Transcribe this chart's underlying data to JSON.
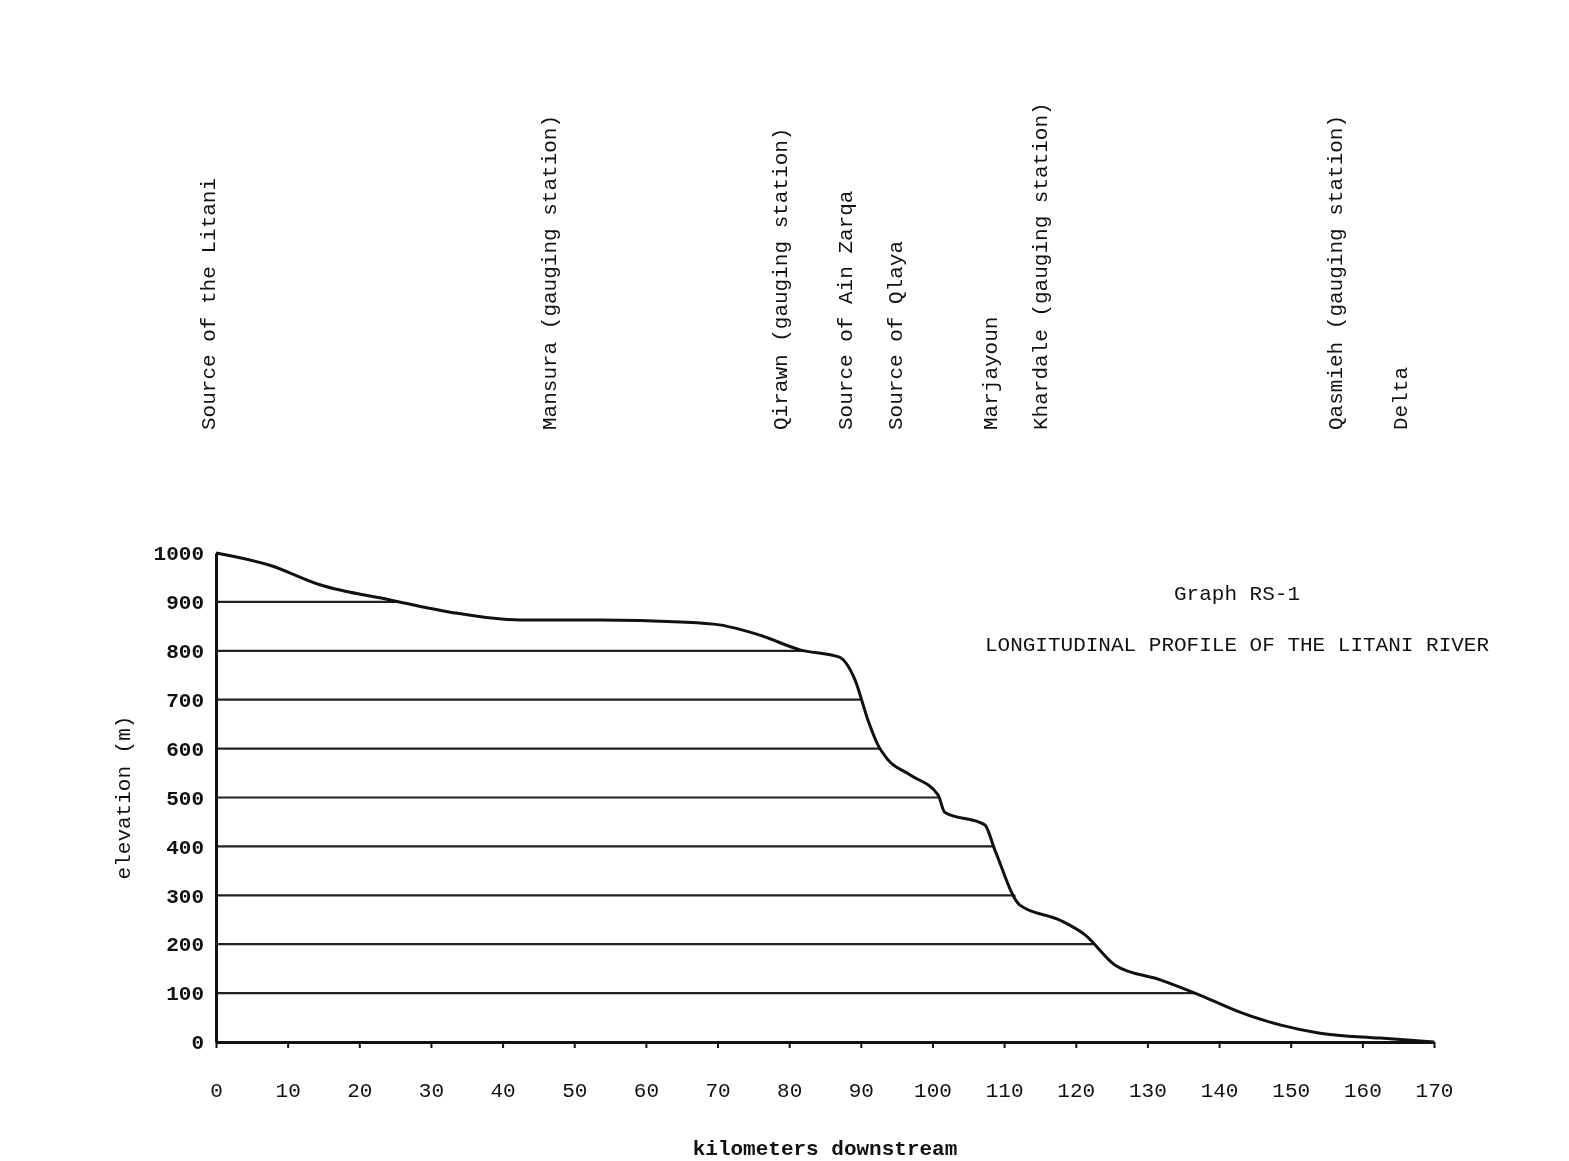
{
  "chart_data": {
    "type": "line",
    "title": "Graph RS-1",
    "subtitle": "LONGITUDINAL PROFILE OF THE LITANI RIVER",
    "xlabel": "kilometers downstream",
    "ylabel": "elevation (m)",
    "x": [
      0,
      7.5,
      14.5,
      24.3,
      32.7,
      42.4,
      53.6,
      64.8,
      70.3,
      75.9,
      81.5,
      87,
      89.2,
      91,
      92.4,
      93.8,
      96.9,
      100.8,
      101.7,
      107.3,
      108.7,
      112.2,
      117.8,
      121.3,
      125.5,
      131.8,
      137.3,
      142.9,
      148.5,
      154.1,
      162.5,
      170
    ],
    "series": [
      {
        "color": "#111111",
        "values": [
          1000,
          975,
          935,
          904,
          879,
          863,
          863,
          859,
          853,
          832,
          802,
          787,
          740,
          658,
          607,
          577,
          546,
          505,
          470,
          444,
          393,
          280,
          249,
          219,
          157,
          127,
          96,
          61,
          35,
          18,
          8,
          0
        ]
      }
    ],
    "xlim": [
      0,
      170
    ],
    "xticks": [
      0,
      10,
      20,
      30,
      40,
      50,
      60,
      70,
      80,
      90,
      100,
      110,
      120,
      130,
      140,
      150,
      160,
      170
    ],
    "ylim": [
      0,
      1000
    ],
    "yticks": [
      0,
      100,
      200,
      300,
      400,
      500,
      600,
      700,
      800,
      900,
      1000
    ],
    "grid": "y",
    "marker": "none",
    "line_style": "solid",
    "annotations": [
      "Source of the Litani",
      "Mansura (gauging station)",
      "Qirawn (gauging station)",
      "Source of Ain Zarqa",
      "Source of Qlaya",
      "Marjayoun",
      "Khardale (gauging station)",
      "Qasmieh (gauging station)",
      "Delta"
    ]
  }
}
